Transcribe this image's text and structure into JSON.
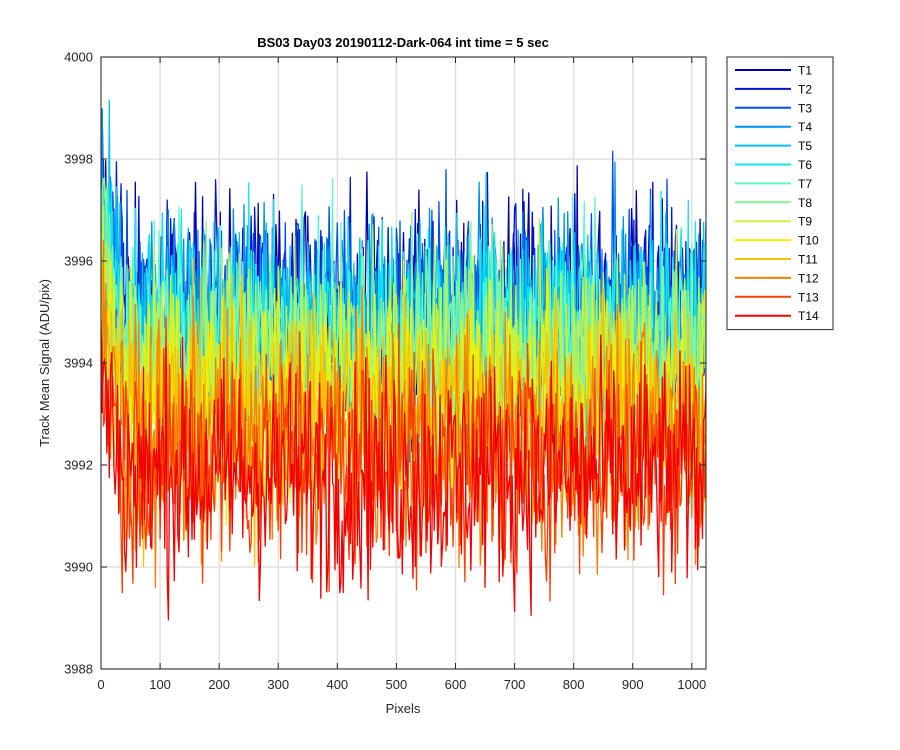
{
  "chart_data": {
    "type": "line",
    "title": "BS03 Day03 20190112-Dark-064 int time = 5 sec",
    "xlabel": "Pixels",
    "ylabel": "Track Mean Signal (ADU/pix)",
    "xlim": [
      0,
      1024
    ],
    "ylim": [
      3988,
      4000
    ],
    "x_ticks": [
      0,
      100,
      200,
      300,
      400,
      500,
      600,
      700,
      800,
      900,
      1000
    ],
    "y_ticks": [
      3988,
      3990,
      3992,
      3994,
      3996,
      3998,
      4000
    ],
    "grid": true,
    "legend_position": "outside-top-right",
    "noise_amplitude_adu": 1.6,
    "initial_transient_pixels": 40,
    "series": [
      {
        "name": "T1",
        "color": "#0000a8",
        "mean": 3995.0
      },
      {
        "name": "T2",
        "color": "#0014cc",
        "mean": 3994.85
      },
      {
        "name": "T3",
        "color": "#0050e6",
        "mean": 3994.9
      },
      {
        "name": "T4",
        "color": "#0090f0",
        "mean": 3994.8
      },
      {
        "name": "T5",
        "color": "#00c0f0",
        "mean": 3994.7
      },
      {
        "name": "T6",
        "color": "#10e8ec",
        "mean": 3994.6
      },
      {
        "name": "T7",
        "color": "#60f8c8",
        "mean": 3994.3
      },
      {
        "name": "T8",
        "color": "#90f090",
        "mean": 3994.2
      },
      {
        "name": "T9",
        "color": "#c8f040",
        "mean": 3993.8
      },
      {
        "name": "T10",
        "color": "#f0f000",
        "mean": 3993.3
      },
      {
        "name": "T11",
        "color": "#f8c000",
        "mean": 3993.0
      },
      {
        "name": "T12",
        "color": "#f88000",
        "mean": 3992.5
      },
      {
        "name": "T13",
        "color": "#f84000",
        "mean": 3992.1
      },
      {
        "name": "T14",
        "color": "#f00000",
        "mean": 3991.8
      }
    ]
  }
}
